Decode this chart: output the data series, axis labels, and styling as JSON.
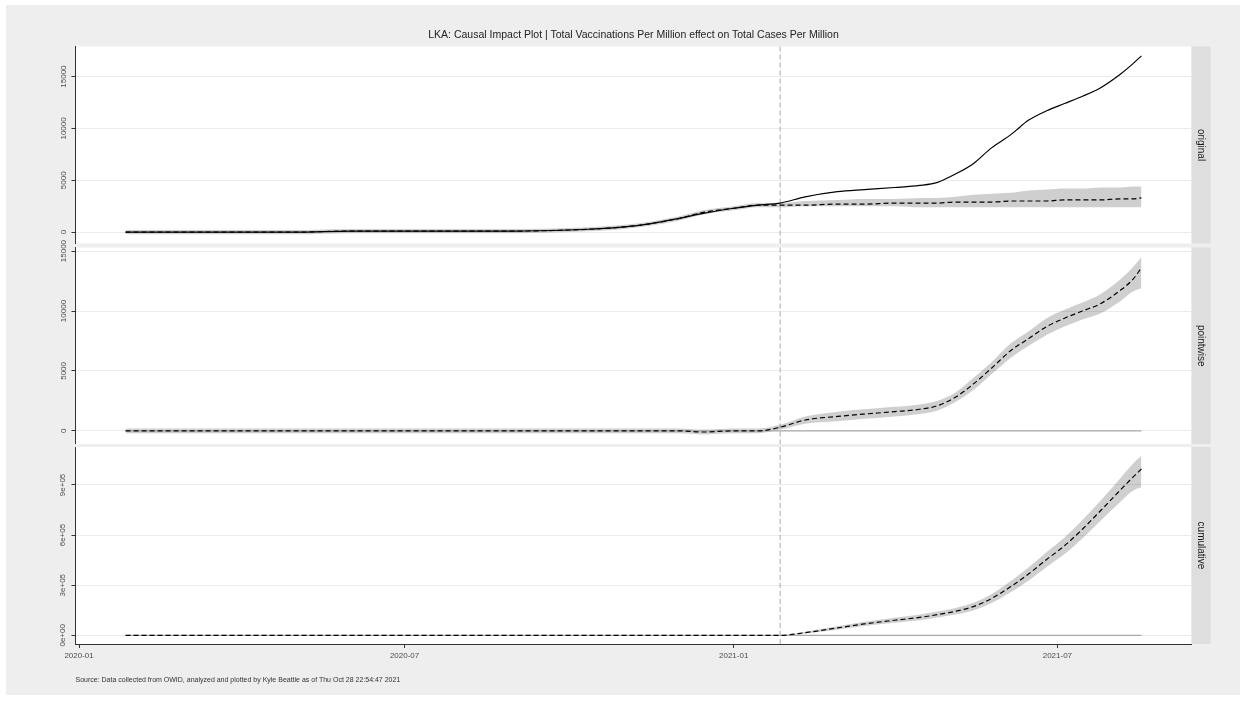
{
  "chart_data": [
    {
      "type": "line",
      "title": "LKA: Causal Impact Plot | Total Vaccinations Per Million effect on Total Cases Per Million",
      "subtitle": "original",
      "x": [
        "2020-01-27",
        "2020-03-01",
        "2020-04-01",
        "2020-05-01",
        "2020-06-01",
        "2020-07-01",
        "2020-08-01",
        "2020-09-01",
        "2020-10-01",
        "2020-10-15",
        "2020-11-01",
        "2020-11-15",
        "2020-12-01",
        "2020-12-15",
        "2021-01-01",
        "2021-01-15",
        "2021-01-27",
        "2021-02-10",
        "2021-02-28",
        "2021-03-15",
        "2021-04-01",
        "2021-04-15",
        "2021-04-25",
        "2021-05-05",
        "2021-05-15",
        "2021-05-25",
        "2021-06-05",
        "2021-06-15",
        "2021-06-25",
        "2021-07-05",
        "2021-07-15",
        "2021-07-25",
        "2021-08-05",
        "2021-08-12",
        "2021-08-17"
      ],
      "series": [
        {
          "color": "#000000",
          "line_style": "solid",
          "values": [
            0,
            0,
            0,
            0,
            100,
            100,
            100,
            100,
            200,
            300,
            500,
            800,
            1300,
            1800,
            2300,
            2600,
            2800,
            3400,
            3900,
            4100,
            4300,
            4500,
            4800,
            5600,
            6600,
            8100,
            9400,
            10800,
            11700,
            12400,
            13100,
            13900,
            15200,
            16200,
            17000
          ]
        },
        {
          "color": "#000000",
          "line_style": "dashed",
          "values": [
            0,
            0,
            0,
            0,
            100,
            100,
            100,
            100,
            200,
            300,
            500,
            800,
            1300,
            1900,
            2300,
            2600,
            2600,
            2600,
            2700,
            2700,
            2800,
            2800,
            2800,
            2900,
            2900,
            2900,
            3000,
            3000,
            3000,
            3100,
            3100,
            3100,
            3200,
            3200,
            3300
          ],
          "lower": [
            -200,
            -200,
            -200,
            -200,
            -100,
            -100,
            -100,
            -100,
            0,
            100,
            300,
            600,
            1100,
            1700,
            2100,
            2400,
            2400,
            2500,
            2500,
            2500,
            2500,
            2400,
            2400,
            2400,
            2400,
            2400,
            2400,
            2400,
            2400,
            2400,
            2400,
            2400,
            2400,
            2400,
            2400
          ],
          "upper": [
            200,
            200,
            200,
            200,
            300,
            300,
            300,
            300,
            400,
            500,
            700,
            1000,
            1500,
            2100,
            2500,
            2800,
            2800,
            3000,
            3100,
            3200,
            3200,
            3300,
            3300,
            3400,
            3600,
            3700,
            3800,
            4000,
            4100,
            4200,
            4200,
            4300,
            4300,
            4400,
            4400
          ]
        }
      ],
      "xlim": [
        "2019-12-30",
        "2021-09-14"
      ],
      "ylim": [
        -1100,
        17900
      ],
      "yticks": [
        0,
        5000,
        10000,
        15000
      ],
      "ref_lines": [
        {
          "axis": "x",
          "value": "2021-01-27",
          "color": "#a9a9a9",
          "line_style": "dashed"
        }
      ],
      "grid": "y",
      "tick_labels": "y"
    },
    {
      "type": "line",
      "subtitle": "pointwise",
      "x": [
        "2020-01-27",
        "2020-03-01",
        "2020-04-01",
        "2020-05-01",
        "2020-06-01",
        "2020-07-01",
        "2020-08-01",
        "2020-09-01",
        "2020-10-01",
        "2020-10-15",
        "2020-11-01",
        "2020-11-15",
        "2020-12-01",
        "2020-12-15",
        "2021-01-01",
        "2021-01-15",
        "2021-01-27",
        "2021-02-10",
        "2021-02-28",
        "2021-03-15",
        "2021-04-01",
        "2021-04-15",
        "2021-04-25",
        "2021-05-05",
        "2021-05-15",
        "2021-05-25",
        "2021-06-05",
        "2021-06-15",
        "2021-06-25",
        "2021-07-05",
        "2021-07-15",
        "2021-07-25",
        "2021-08-05",
        "2021-08-12",
        "2021-08-17"
      ],
      "series": [
        {
          "color": "#a9a9a9",
          "line_style": "solid",
          "x": [
            "2020-01-27",
            "2021-08-17"
          ],
          "values": [
            0,
            0
          ]
        },
        {
          "color": "#000000",
          "line_style": "dashed",
          "values": [
            0,
            0,
            0,
            0,
            0,
            0,
            0,
            0,
            0,
            0,
            0,
            0,
            0,
            -100,
            0,
            0,
            300,
            900,
            1200,
            1400,
            1600,
            1800,
            2100,
            2800,
            3900,
            5200,
            6700,
            7700,
            8700,
            9400,
            10000,
            10600,
            11700,
            12600,
            13600
          ],
          "lower": [
            -200,
            -200,
            -200,
            -200,
            -200,
            -200,
            -200,
            -200,
            -200,
            -200,
            -200,
            -200,
            -200,
            -300,
            -200,
            -200,
            100,
            600,
            800,
            1000,
            1200,
            1400,
            1700,
            2400,
            3400,
            4700,
            6100,
            7100,
            8000,
            8700,
            9300,
            9800,
            10800,
            11600,
            11900
          ],
          "upper": [
            200,
            200,
            200,
            200,
            200,
            200,
            200,
            200,
            200,
            200,
            200,
            200,
            200,
            100,
            200,
            200,
            500,
            1200,
            1600,
            1800,
            2000,
            2200,
            2500,
            3200,
            4400,
            5700,
            7300,
            8300,
            9400,
            10100,
            10700,
            11400,
            12600,
            13600,
            14500
          ]
        }
      ],
      "xlim": [
        "2019-12-30",
        "2021-09-14"
      ],
      "ylim": [
        -1100,
        15300
      ],
      "yticks": [
        0,
        5000,
        10000,
        15000
      ],
      "ref_lines": [
        {
          "axis": "x",
          "value": "2021-01-27",
          "color": "#a9a9a9",
          "line_style": "dashed"
        }
      ],
      "grid": "y",
      "tick_labels": "y"
    },
    {
      "type": "line",
      "subtitle": "cumulative",
      "x": [
        "2020-01-27",
        "2020-03-01",
        "2020-04-01",
        "2020-05-01",
        "2020-06-01",
        "2020-07-01",
        "2020-08-01",
        "2020-09-01",
        "2020-10-01",
        "2020-10-15",
        "2020-11-01",
        "2020-11-15",
        "2020-12-01",
        "2020-12-15",
        "2021-01-01",
        "2021-01-15",
        "2021-01-27",
        "2021-02-10",
        "2021-02-28",
        "2021-03-15",
        "2021-04-01",
        "2021-04-15",
        "2021-04-25",
        "2021-05-05",
        "2021-05-15",
        "2021-05-25",
        "2021-06-05",
        "2021-06-15",
        "2021-06-25",
        "2021-07-05",
        "2021-07-15",
        "2021-07-25",
        "2021-08-05",
        "2021-08-12",
        "2021-08-17"
      ],
      "series": [
        {
          "color": "#a9a9a9",
          "line_style": "solid",
          "x": [
            "2020-01-27",
            "2021-08-17"
          ],
          "values": [
            0,
            0
          ]
        },
        {
          "color": "#000000",
          "line_style": "dashed",
          "values": [
            0,
            0,
            0,
            0,
            0,
            0,
            0,
            0,
            0,
            0,
            0,
            0,
            0,
            0,
            0,
            0,
            0,
            16000,
            44000,
            68000,
            90000,
            107000,
            124000,
            144000,
            172000,
            219000,
            292000,
            368000,
            454000,
            536000,
            635000,
            744000,
            867000,
            944000,
            995000
          ],
          "lower": [
            0,
            0,
            0,
            0,
            0,
            0,
            0,
            0,
            0,
            0,
            0,
            0,
            0,
            0,
            0,
            0,
            0,
            11000,
            34000,
            55000,
            75000,
            90000,
            106000,
            124000,
            149000,
            192000,
            259000,
            328000,
            409000,
            486000,
            580000,
            684000,
            797000,
            864000,
            886000
          ],
          "upper": [
            0,
            0,
            0,
            0,
            0,
            0,
            0,
            0,
            0,
            0,
            0,
            0,
            0,
            0,
            0,
            0,
            0,
            21000,
            54000,
            81000,
            105000,
            124000,
            142000,
            164000,
            195000,
            246000,
            325000,
            408000,
            499000,
            586000,
            690000,
            804000,
            937000,
            1024000,
            1074000
          ]
        }
      ],
      "xlim": [
        "2019-12-30",
        "2021-09-14"
      ],
      "xticks": [
        "2020-01",
        "2020-07",
        "2021-01",
        "2021-07"
      ],
      "ylim": [
        -52000,
        1127000
      ],
      "yticks": [
        {
          "value": 0,
          "label": "0e+00"
        },
        {
          "value": 300000,
          "label": "3e+05"
        },
        {
          "value": 600000,
          "label": "6e+05"
        },
        {
          "value": 900000,
          "label": "9e+05"
        }
      ],
      "ref_lines": [
        {
          "axis": "x",
          "value": "2021-01-27",
          "color": "#a9a9a9",
          "line_style": "dashed"
        }
      ],
      "grid": "y",
      "annotations": [
        "Source: Data collected from OWID, analyzed and plotted by Kyle Beattie as of Thu Oct 28 22:54:47 2021"
      ]
    }
  ]
}
